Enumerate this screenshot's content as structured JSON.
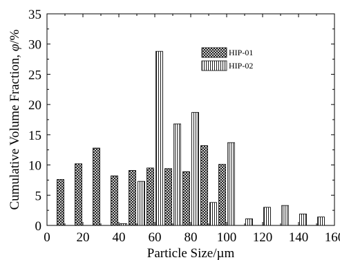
{
  "chart_data": {
    "type": "bar",
    "title": "",
    "xlabel": "Particle Size/µm",
    "ylabel_prefix": "Cumulative Volume Fraction, ",
    "ylabel_symbol": "φ",
    "ylabel_suffix": "/%",
    "xlim": [
      0,
      160
    ],
    "ylim": [
      0,
      35
    ],
    "xticks": [
      "0",
      "20",
      "40",
      "60",
      "80",
      "100",
      "120",
      "140",
      "160"
    ],
    "yticks": [
      "0",
      "5",
      "10",
      "15",
      "20",
      "25",
      "30",
      "35"
    ],
    "grid": false,
    "legend_position": "top-center",
    "series": [
      {
        "name": "HIP-01",
        "pattern": "crosshatch",
        "x": [
          7.5,
          17.5,
          27.5,
          37.5,
          47.5,
          57.5,
          67.5,
          77.5,
          87.5,
          97.5
        ],
        "values": [
          7.6,
          10.2,
          12.8,
          8.2,
          9.1,
          9.5,
          9.4,
          8.9,
          13.2,
          10.1
        ]
      },
      {
        "name": "HIP-02",
        "pattern": "vertical-lines",
        "x": [
          42.5,
          52.5,
          62.5,
          72.5,
          82.5,
          92.5,
          102.5,
          112.5,
          122.5,
          132.5,
          142.5,
          152.5
        ],
        "values": [
          0.3,
          7.3,
          28.8,
          16.8,
          18.7,
          3.8,
          13.7,
          1.1,
          3.0,
          3.3,
          1.9,
          1.4
        ]
      }
    ]
  }
}
